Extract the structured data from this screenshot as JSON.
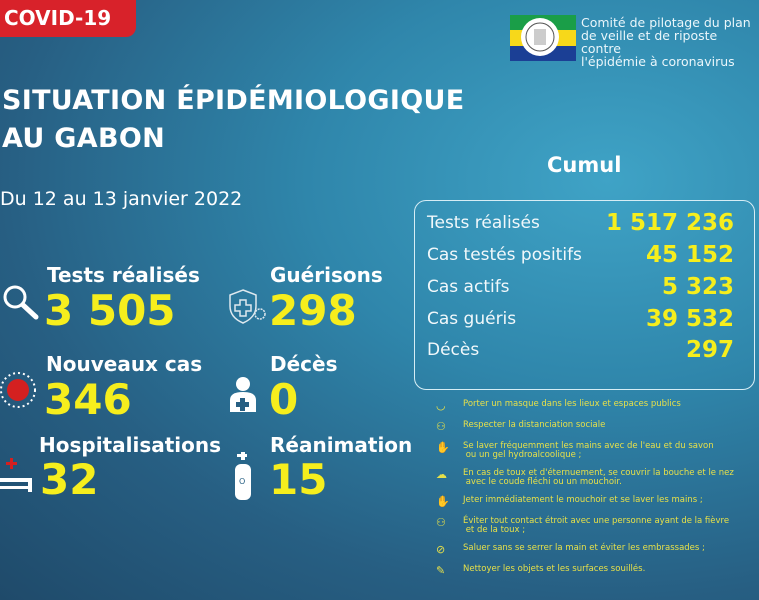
{
  "badge": "COVID-19",
  "header": {
    "title_line1": "SITUATION ÉPIDÉMIOLOGIQUE",
    "title_line2": "AU GABON",
    "date": "Du 12 au 13 janvier 2022"
  },
  "org": {
    "line1": "Comité de pilotage du plan",
    "line2": "de veille et de riposte contre",
    "line3": "l'épidémie à coronavirus",
    "logo_text": "République Gabonaise"
  },
  "stats": [
    {
      "label": "Tests réalisés",
      "value": "3 505",
      "icon": "magnifier-icon"
    },
    {
      "label": "Guérisons",
      "value": "298",
      "icon": "shield-cross-icon"
    },
    {
      "label": "Nouveaux cas",
      "value": "346",
      "icon": "virus-icon"
    },
    {
      "label": "Décès",
      "value": "0",
      "icon": "person-cross-icon"
    },
    {
      "label": "Hospitalisations",
      "value": "32",
      "icon": "hospital-bed-icon"
    },
    {
      "label": "Réanimation",
      "value": "15",
      "icon": "oxygen-tank-icon"
    }
  ],
  "cumul": {
    "title": "Cumul",
    "rows": [
      {
        "label": "Tests réalisés",
        "value": "1 517 236"
      },
      {
        "label": "Cas testés positifs",
        "value": "45 152"
      },
      {
        "label": "Cas actifs",
        "value": "5 323"
      },
      {
        "label": "Cas guéris",
        "value": "39 532"
      },
      {
        "label": "Décès",
        "value": "297"
      }
    ]
  },
  "advice": [
    {
      "text": "Porter un masque dans les lieux et espaces publics",
      "icon": "mask-icon"
    },
    {
      "text": "Respecter la distanciation sociale",
      "icon": "distance-icon"
    },
    {
      "text": "Se laver fréquemment les mains avec de l'eau et du savon\n ou un gel hydroalcoolique ;",
      "icon": "handwash-icon"
    },
    {
      "text": "En cas de toux et d'éternuement, se couvrir la bouche et le nez\n avec le coude fléchi ou un mouchoir.",
      "icon": "cough-icon"
    },
    {
      "text": "Jeter immédiatement le mouchoir et se laver les mains ;",
      "icon": "handwash-icon"
    },
    {
      "text": "Éviter tout contact étroit avec une personne ayant de la fièvre\n et de la toux ;",
      "icon": "distance-icon"
    },
    {
      "text": "Saluer sans se serrer la main et éviter les embrassades ;",
      "icon": "no-handshake-icon"
    },
    {
      "text": "Nettoyer les objets et les surfaces souillés.",
      "icon": "cleaning-icon"
    }
  ],
  "colors": {
    "accent_yellow": "#f6ee1d",
    "badge_red": "#d8222a",
    "virus_red": "#d42020"
  }
}
